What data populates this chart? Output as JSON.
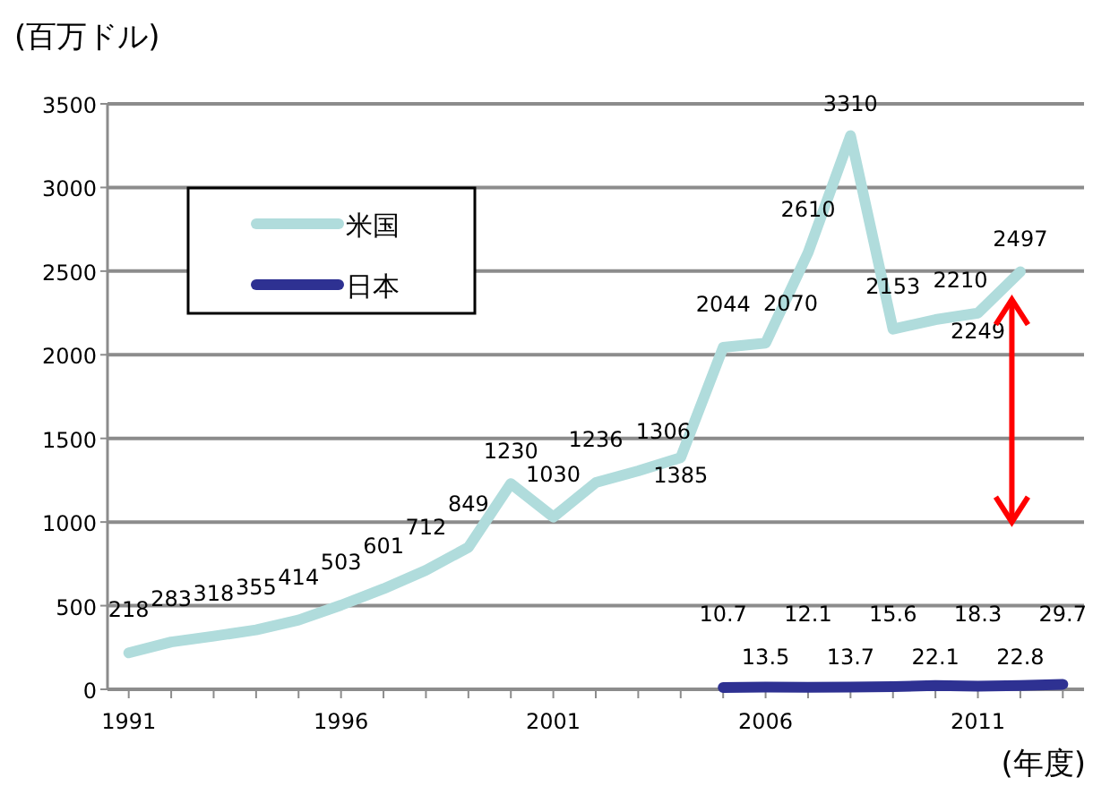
{
  "chart_data": {
    "type": "line",
    "ylabel": "(百万ドル)",
    "xlabel": "(年度)",
    "xlim": [
      1990.5,
      2013.5
    ],
    "xticks": [
      1991,
      {
        "value": 1992,
        "label": null
      },
      {
        "value": 1993,
        "label": null
      },
      {
        "value": 1994,
        "label": null
      },
      {
        "value": 1995,
        "label": null
      },
      1996,
      {
        "value": 1997,
        "label": null
      },
      {
        "value": 1998,
        "label": null
      },
      {
        "value": 1999,
        "label": null
      },
      {
        "value": 2000,
        "label": null
      },
      2001,
      {
        "value": 2002,
        "label": null
      },
      {
        "value": 2003,
        "label": null
      },
      {
        "value": 2004,
        "label": null
      },
      {
        "value": 2005,
        "label": null
      },
      2006,
      {
        "value": 2007,
        "label": null
      },
      {
        "value": 2008,
        "label": null
      },
      {
        "value": 2009,
        "label": null
      },
      {
        "value": 2010,
        "label": null
      },
      2011,
      {
        "value": 2012,
        "label": null
      },
      {
        "value": 2013,
        "label": null
      }
    ],
    "ylim": [
      0,
      3500
    ],
    "yticks": [
      0,
      500,
      1000,
      1500,
      2000,
      2500,
      3000,
      3500
    ],
    "grid": "y",
    "legend": "top left",
    "marker": "none",
    "line_style": "solid",
    "data_labels": true,
    "series": [
      {
        "name": "米国",
        "color": "#b0dcdc",
        "x": [
          1991,
          1992,
          1993,
          1994,
          1995,
          1996,
          1997,
          1998,
          1999,
          2000,
          2001,
          2002,
          2003,
          2004,
          2005,
          2006,
          2007,
          2008,
          2009,
          2010,
          2011,
          2012
        ],
        "values": [
          218,
          283,
          318,
          355,
          414,
          503,
          601,
          712,
          849,
          1230,
          1030,
          1236,
          1306,
          1385,
          2044,
          2070,
          2610,
          3310,
          2153,
          2210,
          2249,
          2497
        ]
      },
      {
        "name": "日本",
        "color": "#2e3192",
        "x": [
          2005,
          2006,
          2007,
          2008,
          2009,
          2010,
          2011,
          2012,
          2013
        ],
        "values": [
          10.7,
          13.5,
          12.1,
          13.7,
          15.6,
          22.1,
          18.3,
          22.8,
          29.7
        ]
      }
    ]
  }
}
